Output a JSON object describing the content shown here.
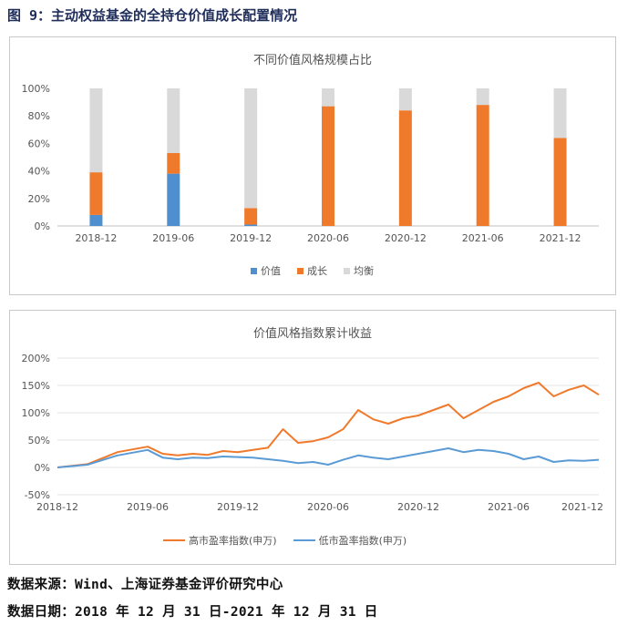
{
  "figure_title": "图 9：主动权益基金的全持仓价值成长配置情况",
  "footer": {
    "source": "数据来源：Wind、上海证券基金评价研究中心",
    "date": "数据日期：2018 年 12 月 31 日-2021 年 12 月 31 日"
  },
  "colors": {
    "value": "#4f8fcf",
    "growth": "#f07a2c",
    "balanced": "#d9d9d9",
    "high_pe": "#f07a2c",
    "low_pe": "#5b9bd5"
  },
  "chart_data": [
    {
      "type": "bar",
      "stacked": true,
      "title": "不同价值风格规模占比",
      "categories": [
        "2018-12",
        "2019-06",
        "2019-12",
        "2020-06",
        "2020-12",
        "2021-06",
        "2021-12"
      ],
      "series": [
        {
          "name": "价值",
          "values": [
            8,
            38,
            1,
            0,
            0,
            0,
            0
          ]
        },
        {
          "name": "成长",
          "values": [
            31,
            15,
            12,
            87,
            84,
            88,
            64
          ]
        },
        {
          "name": "均衡",
          "values": [
            61,
            47,
            87,
            13,
            16,
            12,
            36
          ]
        }
      ],
      "ylim": [
        0,
        100
      ],
      "yticks": [
        "0%",
        "20%",
        "40%",
        "60%",
        "80%",
        "100%"
      ],
      "legend_position": "bottom",
      "grid": false
    },
    {
      "type": "line",
      "title": "价值风格指数累计收益",
      "x_ticks": [
        "2018-12",
        "2019-06",
        "2019-12",
        "2020-06",
        "2020-12",
        "2021-06",
        "2021-12"
      ],
      "ylim": [
        -50,
        200
      ],
      "yticks": [
        "-50%",
        "0%",
        "50%",
        "100%",
        "150%",
        "200%"
      ],
      "legend_position": "bottom",
      "grid": true,
      "series": [
        {
          "name": "高市盈率指数(申万)",
          "x": [
            0,
            2,
            4,
            6,
            7,
            8,
            9,
            10,
            11,
            12,
            13,
            14,
            15,
            16,
            17,
            18,
            19,
            20,
            21,
            22,
            23,
            24,
            25,
            26,
            27,
            28,
            29,
            30,
            31,
            32,
            33,
            34,
            35,
            36
          ],
          "y": [
            0,
            6,
            28,
            38,
            25,
            22,
            25,
            23,
            30,
            28,
            32,
            36,
            70,
            45,
            48,
            55,
            70,
            105,
            88,
            80,
            90,
            95,
            105,
            115,
            90,
            105,
            120,
            130,
            145,
            155,
            130,
            142,
            150,
            133
          ]
        },
        {
          "name": "低市盈率指数(申万)",
          "x": [
            0,
            2,
            4,
            6,
            7,
            8,
            9,
            10,
            11,
            12,
            13,
            14,
            15,
            16,
            17,
            18,
            19,
            20,
            21,
            22,
            23,
            24,
            25,
            26,
            27,
            28,
            29,
            30,
            31,
            32,
            33,
            34,
            35,
            36
          ],
          "y": [
            0,
            5,
            22,
            32,
            18,
            15,
            18,
            17,
            20,
            19,
            18,
            15,
            12,
            8,
            10,
            5,
            14,
            22,
            18,
            15,
            20,
            25,
            30,
            35,
            28,
            32,
            30,
            25,
            15,
            20,
            10,
            13,
            12,
            14
          ]
        }
      ]
    }
  ]
}
